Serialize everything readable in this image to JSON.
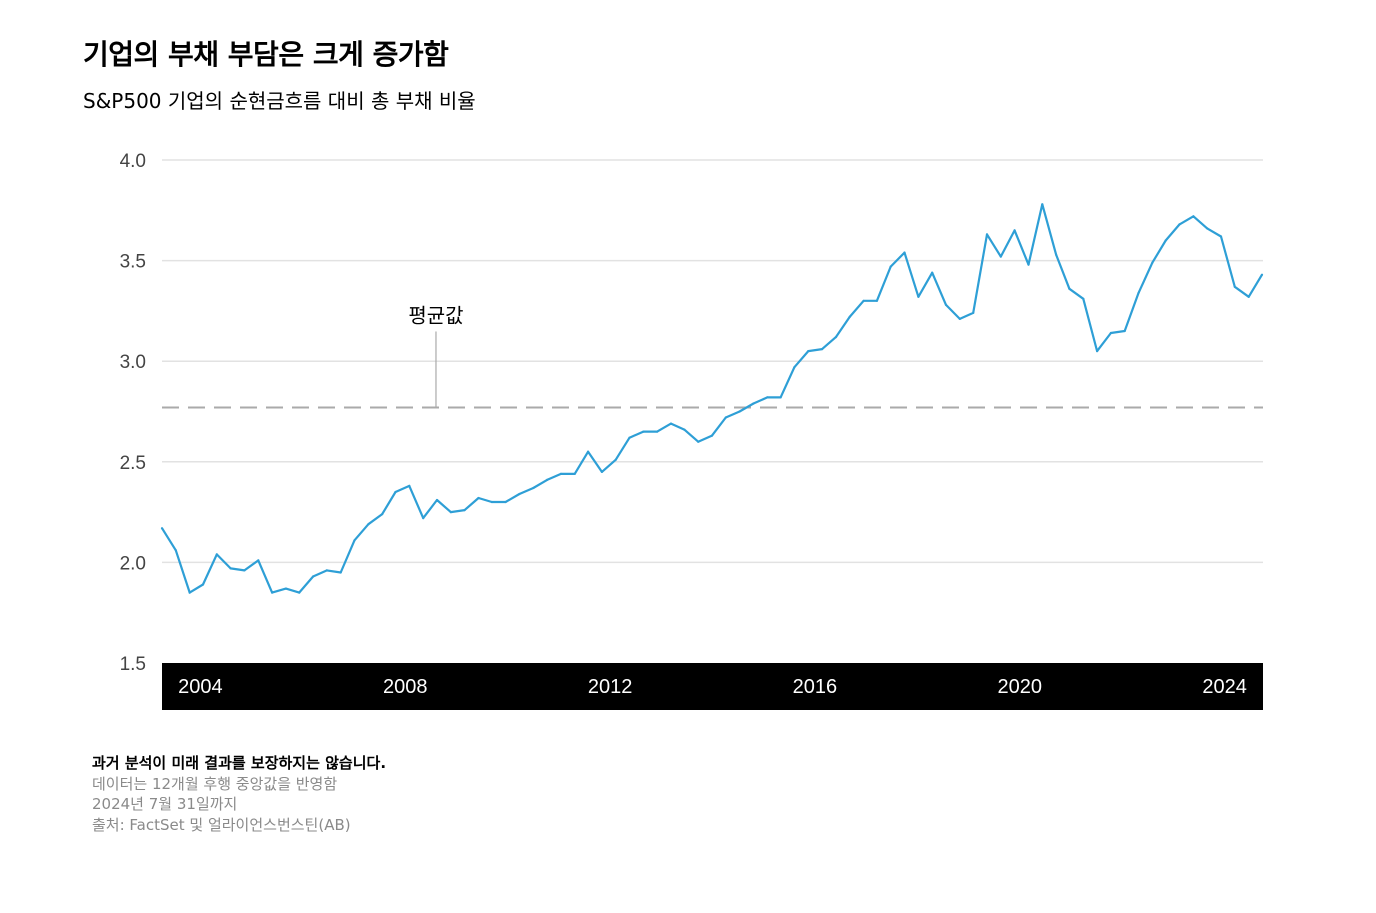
{
  "title": "기업의 부채 부담은 크게 증가함",
  "subtitle": "S&P500 기업의 순현금흐름 대비 총 부채 비율",
  "chart_data": {
    "type": "line",
    "ylim": [
      1.5,
      4.0
    ],
    "xlim": [
      2003.25,
      2024.75
    ],
    "yticks": [
      "4.0",
      "3.5",
      "3.0",
      "2.5",
      "2.0",
      "1.5"
    ],
    "ytick_values": [
      4.0,
      3.5,
      3.0,
      2.5,
      2.0,
      1.5
    ],
    "xticks": [
      "2004",
      "2008",
      "2012",
      "2016",
      "2020",
      "2024"
    ],
    "xtick_values": [
      2004,
      2008,
      2012,
      2016,
      2020,
      2024
    ],
    "grid": true,
    "average": {
      "label": "평균값",
      "value": 2.77
    },
    "series": [
      {
        "color": "#2e9fd6",
        "x": [
          2003.25,
          2003.52,
          2003.79,
          2004.05,
          2004.32,
          2004.59,
          2004.86,
          2005.13,
          2005.4,
          2005.67,
          2005.93,
          2006.2,
          2006.47,
          2006.74,
          2007.01,
          2007.28,
          2007.55,
          2007.81,
          2008.08,
          2008.35,
          2008.62,
          2008.89,
          2009.16,
          2009.43,
          2009.69,
          2009.96,
          2010.23,
          2010.5,
          2010.77,
          2011.04,
          2011.31,
          2011.57,
          2011.84,
          2012.11,
          2012.38,
          2012.65,
          2012.92,
          2013.19,
          2013.45,
          2013.72,
          2013.99,
          2014.26,
          2014.53,
          2014.8,
          2015.07,
          2015.33,
          2015.6,
          2015.87,
          2016.14,
          2016.41,
          2016.68,
          2016.95,
          2017.21,
          2017.48,
          2017.75,
          2018.02,
          2018.29,
          2018.56,
          2018.83,
          2019.09,
          2019.36,
          2019.63,
          2019.9,
          2020.17,
          2020.44,
          2020.71,
          2020.97,
          2021.24,
          2021.51,
          2021.78,
          2022.05,
          2022.32,
          2022.59,
          2022.85,
          2023.12,
          2023.39,
          2023.66,
          2023.93,
          2024.2,
          2024.47,
          2024.73
        ],
        "values": [
          2.17,
          2.06,
          1.85,
          1.89,
          2.04,
          1.97,
          1.96,
          2.01,
          1.85,
          1.87,
          1.85,
          1.93,
          1.96,
          1.95,
          2.11,
          2.19,
          2.24,
          2.35,
          2.38,
          2.22,
          2.31,
          2.25,
          2.26,
          2.32,
          2.3,
          2.3,
          2.34,
          2.37,
          2.41,
          2.44,
          2.44,
          2.55,
          2.45,
          2.51,
          2.62,
          2.65,
          2.65,
          2.69,
          2.66,
          2.6,
          2.63,
          2.72,
          2.75,
          2.79,
          2.82,
          2.82,
          2.97,
          3.05,
          3.06,
          3.12,
          3.22,
          3.3,
          3.3,
          3.47,
          3.54,
          3.32,
          3.44,
          3.28,
          3.21,
          3.24,
          3.63,
          3.52,
          3.65,
          3.48,
          3.78,
          3.53,
          3.36,
          3.31,
          3.05,
          3.14,
          3.15,
          3.34,
          3.49,
          3.6,
          3.68,
          3.72,
          3.66,
          3.62,
          3.37,
          3.32,
          3.43
        ]
      }
    ]
  },
  "footer": {
    "disclaimer": "과거 분석이 미래 결과를 보장하지는 않습니다.",
    "note": "데이터는 12개월 후행 중앙값을 반영함",
    "date": "2024년 7월 31일까지",
    "source": "출처: FactSet 및 얼라이언스번스틴(AB)"
  }
}
